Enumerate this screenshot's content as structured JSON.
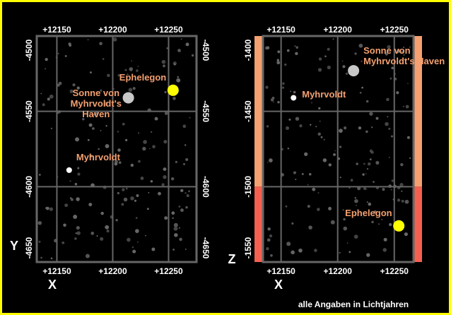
{
  "chart_data": [
    {
      "type": "scatter",
      "x_label": "X",
      "y_label": "Y",
      "xlim": [
        12132,
        12275
      ],
      "ylim": [
        -4500,
        -4650
      ],
      "xticks": [
        {
          "value": 12150,
          "label": "+12150"
        },
        {
          "value": 12200,
          "label": "+12200"
        },
        {
          "value": 12250,
          "label": "+12250"
        }
      ],
      "yticks": [
        -4500,
        -4550,
        -4600,
        -4650
      ],
      "grid": true,
      "series": [
        {
          "name": "Ephelegon",
          "color": "#ffff00",
          "x": [
            12254
          ],
          "values": [
            -4536
          ]
        },
        {
          "name": "Sonne von\nMyhrvoldt's\nHaven",
          "color": "#c8c8c8",
          "x": [
            12214
          ],
          "values": [
            -4541
          ]
        },
        {
          "name": "Myhrvoldt",
          "color": "#ffffff",
          "x": [
            12161
          ],
          "values": [
            -4589
          ]
        }
      ]
    },
    {
      "type": "scatter",
      "x_label": "X",
      "y_label": "Z",
      "xlim": [
        12134,
        12267
      ],
      "ylim": [
        -1400,
        -1550
      ],
      "xticks": [
        {
          "value": 12150,
          "label": "+12150"
        },
        {
          "value": 12200,
          "label": "+12200"
        },
        {
          "value": 12250,
          "label": "+12250"
        }
      ],
      "yticks": [
        -1400,
        -1450,
        -1500,
        -1550
      ],
      "grid": true,
      "series": [
        {
          "name": "Ephelegon",
          "color": "#ffff00",
          "x": [
            12254
          ],
          "values": [
            -1526
          ]
        },
        {
          "name": "Sonne von\nMyhrvoldt's Haven",
          "color": "#c8c8c8",
          "x": [
            12214
          ],
          "values": [
            -1423
          ]
        },
        {
          "name": "Myhrvoldt",
          "color": "#ffffff",
          "x": [
            12161
          ],
          "values": [
            -1441
          ]
        }
      ]
    }
  ],
  "footnote": "alle Angaben in Lichtjahren"
}
